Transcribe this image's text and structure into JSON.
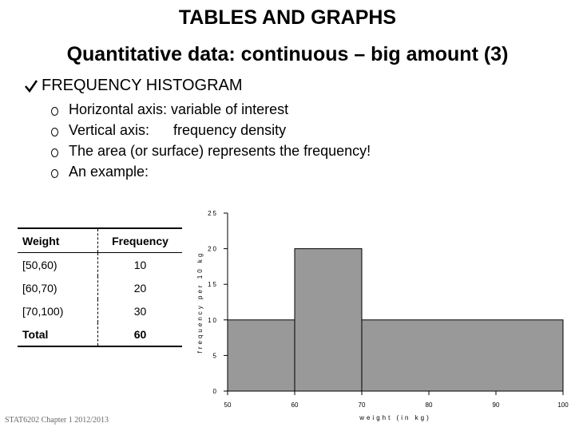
{
  "slide": {
    "title": "TABLES AND GRAPHS",
    "subtitle": "Quantitative data: continuous – big amount (3)",
    "bullet": "FREQUENCY HISTOGRAM",
    "subbullets": [
      "Horizontal axis: variable of interest",
      "Vertical axis:      frequency density",
      "The area (or surface) represents the frequency!",
      "An example:"
    ],
    "footer": "STAT6202 Chapter 1 2012/2013"
  },
  "table": {
    "header": [
      "Weight",
      "Frequency"
    ],
    "rows": [
      [
        "[50,60)",
        10
      ],
      [
        "[60,70)",
        20
      ],
      [
        "[70,100)",
        30
      ]
    ],
    "total": [
      "Total",
      60
    ]
  },
  "chart_data": {
    "type": "histogram",
    "bins": [
      50,
      60,
      70,
      100
    ],
    "values": [
      10,
      20,
      10
    ],
    "color": "#999999",
    "xlim": [
      50,
      100
    ],
    "xticks": [
      50,
      60,
      70,
      80,
      90,
      100
    ],
    "ylim": [
      0,
      25
    ],
    "yticks": [
      0,
      5,
      10,
      15,
      20,
      25
    ],
    "xlabel": "weight (in kg)",
    "ylabel": "frequency per 10 kg"
  }
}
